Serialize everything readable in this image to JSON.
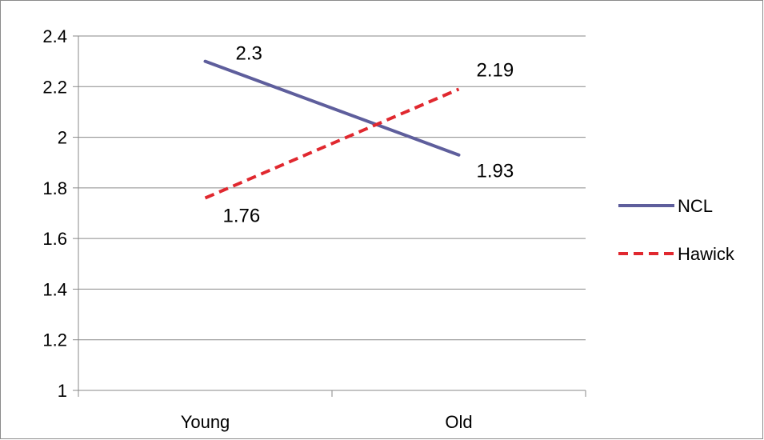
{
  "chart_data": {
    "type": "line",
    "title": "",
    "xlabel": "",
    "ylabel": "",
    "categories": [
      "Young",
      "Old"
    ],
    "ylim": [
      1,
      2.4
    ],
    "y_ticks": [
      "1",
      "1.2",
      "1.4",
      "1.6",
      "1.8",
      "2",
      "2.2",
      "2.4"
    ],
    "y_tick_values": [
      1,
      1.2,
      1.4,
      1.6,
      1.8,
      2,
      2.2,
      2.4
    ],
    "grid": true,
    "legend_position": "right",
    "series": [
      {
        "name": "NCL",
        "values": [
          2.3,
          1.93
        ],
        "labels": [
          "2.3",
          "1.93"
        ],
        "color": "#5e5e9c",
        "line_style": "solid"
      },
      {
        "name": "Hawick",
        "values": [
          1.76,
          2.19
        ],
        "labels": [
          "1.76",
          "2.19"
        ],
        "color": "#e0282f",
        "line_style": "dashed"
      }
    ]
  }
}
